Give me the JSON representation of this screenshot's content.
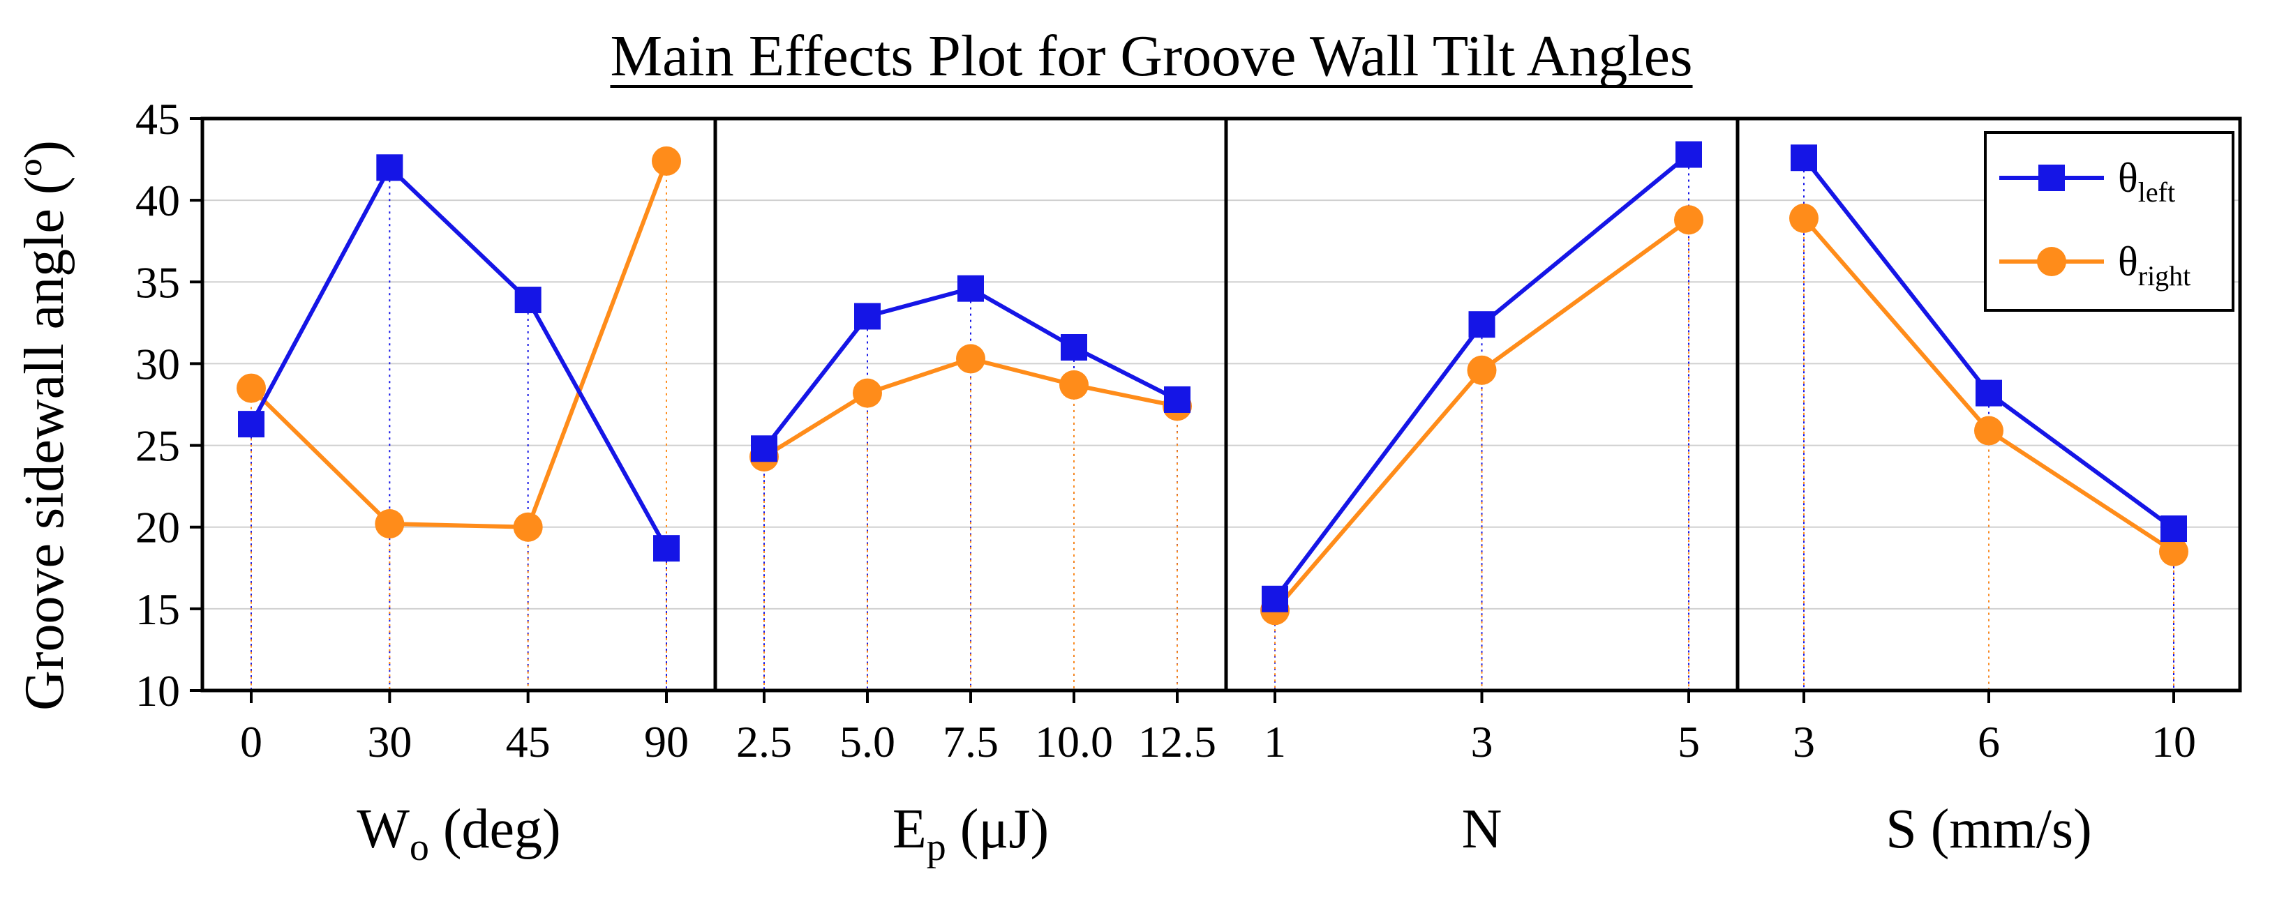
{
  "chart_data": {
    "type": "line",
    "title": "Main Effects Plot for Groove Wall Tilt Angles",
    "ylabel": "Groove sidewall angle (º)",
    "ylim": [
      10,
      45
    ],
    "yticks": [
      10,
      15,
      20,
      25,
      30,
      35,
      40,
      45
    ],
    "grid": true,
    "legend_position": "top-right",
    "colors": {
      "left": "#1515e6",
      "right": "#ff8c1a"
    },
    "legend": [
      {
        "key": "left",
        "symbol": "θ",
        "sub": "left"
      },
      {
        "key": "right",
        "symbol": "θ",
        "sub": "right"
      }
    ],
    "panels": [
      {
        "id": "wo",
        "xlabel": {
          "main": "W",
          "sub": "o",
          "rest": " (deg)"
        },
        "categories": [
          "0",
          "30",
          "45",
          "90"
        ],
        "series": [
          {
            "key": "left",
            "name": "θleft",
            "marker": "square",
            "values": [
              26.3,
              42.0,
              33.9,
              18.7
            ]
          },
          {
            "key": "right",
            "name": "θright",
            "marker": "circle",
            "values": [
              28.5,
              20.2,
              20.0,
              42.4
            ]
          }
        ]
      },
      {
        "id": "ep",
        "xlabel": {
          "main": "E",
          "sub": "p",
          "rest": " (μJ)"
        },
        "categories": [
          "2.5",
          "5.0",
          "7.5",
          "10.0",
          "12.5"
        ],
        "series": [
          {
            "key": "left",
            "name": "θleft",
            "marker": "square",
            "values": [
              24.8,
              32.9,
              34.6,
              31.0,
              27.8
            ]
          },
          {
            "key": "right",
            "name": "θright",
            "marker": "circle",
            "values": [
              24.3,
              28.2,
              30.3,
              28.7,
              27.4
            ]
          }
        ]
      },
      {
        "id": "n",
        "xlabel": {
          "main": "N",
          "sub": "",
          "rest": ""
        },
        "categories": [
          "1",
          "3",
          "5"
        ],
        "series": [
          {
            "key": "left",
            "name": "θleft",
            "marker": "square",
            "values": [
              15.6,
              32.4,
              42.8
            ]
          },
          {
            "key": "right",
            "name": "θright",
            "marker": "circle",
            "values": [
              14.9,
              29.6,
              38.8
            ]
          }
        ]
      },
      {
        "id": "s",
        "xlabel": {
          "main": "S",
          "sub": "",
          "rest": " (mm/s)"
        },
        "categories": [
          "3",
          "6",
          "10"
        ],
        "series": [
          {
            "key": "left",
            "name": "θleft",
            "marker": "square",
            "values": [
              42.6,
              28.2,
              19.9
            ]
          },
          {
            "key": "right",
            "name": "θright",
            "marker": "circle",
            "values": [
              38.9,
              25.9,
              18.5
            ]
          }
        ]
      }
    ]
  }
}
